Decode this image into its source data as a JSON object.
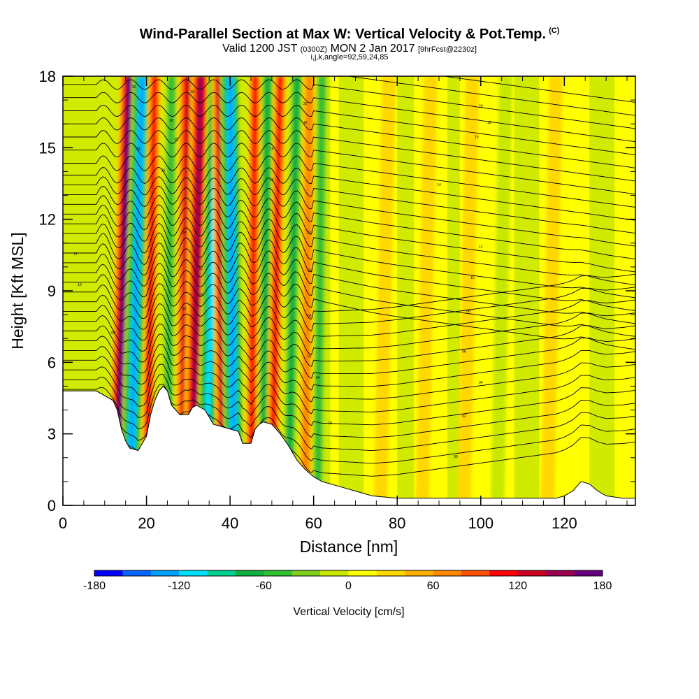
{
  "header": {
    "title": "Wind-Parallel Section at Max W: Vertical Velocity & Pot.Temp.",
    "copyright": "(C)",
    "valid_prefix": "Valid 1200 JST",
    "valid_utc": "(0300Z)",
    "valid_date": "MON 2 Jan 2017",
    "forecast": "[9hrFcst@2230z]",
    "indices": "i,j,k,angle=92,59,24,85"
  },
  "chart_data": {
    "type": "heatmap",
    "xlabel": "Distance [nm]",
    "ylabel": "Height [Kft MSL]",
    "xlim": [
      0,
      137
    ],
    "ylim": [
      0,
      18
    ],
    "xticks": [
      0,
      20,
      40,
      60,
      80,
      100,
      120
    ],
    "yticks": [
      0,
      3,
      6,
      9,
      12,
      15,
      18
    ],
    "colorbar": {
      "title": "Vertical Velocity [cm/s]",
      "range": [
        -180,
        180
      ],
      "tick_values": [
        -180,
        -120,
        -60,
        0,
        60,
        120,
        180
      ],
      "tick_labels": [
        "-180",
        "-120",
        "-60",
        "0",
        "60",
        "120",
        "180"
      ],
      "colors": [
        "#0000ff",
        "#0066ff",
        "#00a0ff",
        "#00e0ff",
        "#00d090",
        "#10b040",
        "#30c030",
        "#80d020",
        "#c8e800",
        "#ffff00",
        "#ffd800",
        "#ffb000",
        "#ff8800",
        "#ff5000",
        "#ff0000",
        "#cc0020",
        "#990050",
        "#660080"
      ]
    },
    "terrain_kft": [
      [
        0,
        4.8
      ],
      [
        5,
        4.8
      ],
      [
        8,
        4.8
      ],
      [
        10,
        4.6
      ],
      [
        12,
        4.4
      ],
      [
        13,
        4
      ],
      [
        14,
        3.2
      ],
      [
        15,
        2.7
      ],
      [
        16,
        2.4
      ],
      [
        18,
        2.3
      ],
      [
        20,
        2.9
      ],
      [
        21,
        3.8
      ],
      [
        22,
        4.4
      ],
      [
        23,
        4.8
      ],
      [
        24,
        5
      ],
      [
        25,
        4.8
      ],
      [
        26,
        4.2
      ],
      [
        28,
        3.8
      ],
      [
        30,
        3.8
      ],
      [
        31,
        4.1
      ],
      [
        32,
        4.2
      ],
      [
        34,
        4
      ],
      [
        36,
        3.4
      ],
      [
        38,
        3.3
      ],
      [
        40,
        3.2
      ],
      [
        42,
        3.1
      ],
      [
        43,
        2.6
      ],
      [
        45,
        2.6
      ],
      [
        46,
        3.2
      ],
      [
        47,
        3.4
      ],
      [
        48,
        3.5
      ],
      [
        50,
        3.4
      ],
      [
        52,
        3
      ],
      [
        54,
        2.5
      ],
      [
        56,
        1.9
      ],
      [
        58,
        1.5
      ],
      [
        60,
        1.2
      ],
      [
        62,
        1
      ],
      [
        66,
        0.8
      ],
      [
        70,
        0.6
      ],
      [
        74,
        0.4
      ],
      [
        80,
        0.3
      ],
      [
        90,
        0.3
      ],
      [
        100,
        0.3
      ],
      [
        110,
        0.3
      ],
      [
        118,
        0.3
      ],
      [
        120,
        0.4
      ],
      [
        122,
        0.6
      ],
      [
        124,
        1
      ],
      [
        126,
        0.9
      ],
      [
        128,
        0.6
      ],
      [
        130,
        0.4
      ],
      [
        134,
        0.3
      ],
      [
        137,
        0.3
      ]
    ],
    "velocity_bands": [
      {
        "x_bottom": 13,
        "x_top": 16,
        "w": 150
      },
      {
        "x_bottom": 16,
        "x_top": 19,
        "w": -130
      },
      {
        "x_bottom": 20,
        "x_top": 22,
        "w": 90
      },
      {
        "x_bottom": 25,
        "x_top": 26,
        "w": -60
      },
      {
        "x_bottom": 29,
        "x_top": 30,
        "w": 120
      },
      {
        "x_bottom": 31,
        "x_top": 33,
        "w": 140
      },
      {
        "x_bottom": 34,
        "x_top": 37,
        "w": -120
      },
      {
        "x_bottom": 39,
        "x_top": 38,
        "w": 150
      },
      {
        "x_bottom": 41,
        "x_top": 40,
        "w": -140
      },
      {
        "x_bottom": 45,
        "x_top": 46,
        "w": 100
      },
      {
        "x_bottom": 48,
        "x_top": 49,
        "w": -70
      },
      {
        "x_bottom": 50,
        "x_top": 52,
        "w": 90
      },
      {
        "x_bottom": 54,
        "x_top": 56,
        "w": -70
      },
      {
        "x_bottom": 58,
        "x_top": 59,
        "w": 60
      },
      {
        "x_bottom": 61,
        "x_top": 62,
        "w": -50
      },
      {
        "x_bottom": 76,
        "x_top": 78,
        "w": 25
      },
      {
        "x_bottom": 86,
        "x_top": 88,
        "w": 20
      },
      {
        "x_bottom": 96,
        "x_top": 98,
        "w": 22
      },
      {
        "x_bottom": 104,
        "x_top": 106,
        "w": -25
      },
      {
        "x_bottom": 116,
        "x_top": 118,
        "w": 20
      }
    ],
    "theta_labels": [
      {
        "x": 17,
        "y": 17.5,
        "text": "20"
      },
      {
        "x": 31,
        "y": 17.3,
        "text": "18"
      },
      {
        "x": 58,
        "y": 16.8,
        "text": "20"
      },
      {
        "x": 100,
        "y": 16.7,
        "text": "20"
      },
      {
        "x": 26,
        "y": 16.1,
        "text": "20"
      },
      {
        "x": 58,
        "y": 16,
        "text": "18"
      },
      {
        "x": 102,
        "y": 16,
        "text": "18"
      },
      {
        "x": 27,
        "y": 15.3,
        "text": "18"
      },
      {
        "x": 50,
        "y": 14.9,
        "text": "16"
      },
      {
        "x": 99,
        "y": 15.4,
        "text": "16"
      },
      {
        "x": 18,
        "y": 14.9,
        "text": "18"
      },
      {
        "x": 24,
        "y": 14,
        "text": "16"
      },
      {
        "x": 50,
        "y": 13.6,
        "text": "14"
      },
      {
        "x": 90,
        "y": 13.4,
        "text": "14"
      },
      {
        "x": 3,
        "y": 10.5,
        "text": "12"
      },
      {
        "x": 29,
        "y": 11.4,
        "text": "14"
      },
      {
        "x": 59,
        "y": 11.4,
        "text": "12"
      },
      {
        "x": 100,
        "y": 10.8,
        "text": "12"
      },
      {
        "x": 4,
        "y": 9.2,
        "text": "10"
      },
      {
        "x": 33,
        "y": 9.9,
        "text": "12"
      },
      {
        "x": 59,
        "y": 9.8,
        "text": "10"
      },
      {
        "x": 98,
        "y": 9.5,
        "text": "10"
      },
      {
        "x": 33,
        "y": 8.8,
        "text": "10"
      },
      {
        "x": 29,
        "y": 8.2,
        "text": "10"
      },
      {
        "x": 59,
        "y": 7.9,
        "text": "08"
      },
      {
        "x": 97,
        "y": 8.1,
        "text": "08"
      },
      {
        "x": 12,
        "y": 7.2,
        "text": "08"
      },
      {
        "x": 59,
        "y": 6.2,
        "text": "06"
      },
      {
        "x": 96,
        "y": 6.4,
        "text": "06"
      },
      {
        "x": 61,
        "y": 5.3,
        "text": "04"
      },
      {
        "x": 100,
        "y": 5.1,
        "text": "04"
      },
      {
        "x": 64,
        "y": 3.4,
        "text": "02"
      },
      {
        "x": 96,
        "y": 3.7,
        "text": "02"
      },
      {
        "x": 94,
        "y": 2.0,
        "text": "00"
      }
    ]
  }
}
